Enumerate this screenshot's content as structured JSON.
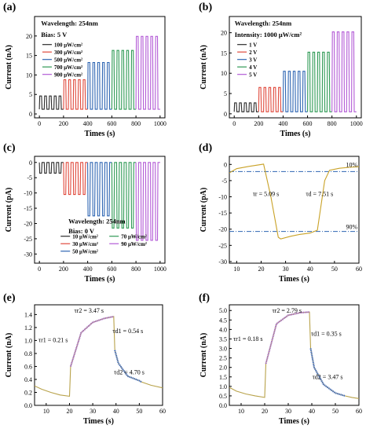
{
  "figure": {
    "panels": [
      {
        "id": "a",
        "label": "(a)"
      },
      {
        "id": "b",
        "label": "(b)"
      },
      {
        "id": "c",
        "label": "(c)"
      },
      {
        "id": "d",
        "label": "(d)"
      },
      {
        "id": "e",
        "label": "(e)"
      },
      {
        "id": "f",
        "label": "(f)"
      }
    ]
  },
  "chart_data": [
    {
      "id": "a",
      "type": "line",
      "xlabel": "Times (s)",
      "ylabel": "Current (nA)",
      "xlim": [
        -40,
        1040
      ],
      "ylim": [
        -1,
        25
      ],
      "xticks": [
        0,
        200,
        400,
        600,
        800,
        1000
      ],
      "yticks": [
        0,
        5,
        10,
        15,
        20
      ],
      "annotations": [
        "Wavelength: 254nm",
        "Bias: 5 V"
      ],
      "legend_position": "center-left",
      "series": [
        {
          "name": "100 μW/cm²",
          "color": "#2b2b2b",
          "x_start": 0,
          "x_end": 200,
          "on": 4.6,
          "off": 1.2
        },
        {
          "name": "300 μW/cm²",
          "color": "#e0493c",
          "x_start": 200,
          "x_end": 400,
          "on": 8.8,
          "off": 1.2
        },
        {
          "name": "500 μW/cm²",
          "color": "#2f66b3",
          "x_start": 400,
          "x_end": 600,
          "on": 13.2,
          "off": 1.2
        },
        {
          "name": "700 μW/cm²",
          "color": "#2f9a55",
          "x_start": 600,
          "x_end": 800,
          "on": 16.3,
          "off": 1.2
        },
        {
          "name": "900 μW/cm²",
          "color": "#b35bd6",
          "x_start": 800,
          "x_end": 1000,
          "on": 19.9,
          "off": 1.2
        }
      ]
    },
    {
      "id": "b",
      "type": "line",
      "xlabel": "Times (s)",
      "ylabel": "Current (nA)",
      "xlim": [
        -40,
        1040
      ],
      "ylim": [
        -1,
        24
      ],
      "xticks": [
        0,
        200,
        400,
        600,
        800,
        1000
      ],
      "yticks": [
        0,
        5,
        10,
        15,
        20
      ],
      "annotations": [
        "Wavelength: 254nm",
        "Intensity: 1000 μW/cm²"
      ],
      "legend_position": "center-left",
      "series": [
        {
          "name": "1 V",
          "color": "#2b2b2b",
          "x_start": 0,
          "x_end": 200,
          "on": 2.7,
          "off": 0.5
        },
        {
          "name": "2 V",
          "color": "#e0493c",
          "x_start": 200,
          "x_end": 400,
          "on": 6.5,
          "off": 0.5
        },
        {
          "name": "3 V",
          "color": "#2f66b3",
          "x_start": 400,
          "x_end": 600,
          "on": 10.5,
          "off": 0.5
        },
        {
          "name": "4 V",
          "color": "#2f9a55",
          "x_start": 600,
          "x_end": 800,
          "on": 15.2,
          "off": 0.5
        },
        {
          "name": "5 V",
          "color": "#b35bd6",
          "x_start": 800,
          "x_end": 1000,
          "on": 20.2,
          "off": 0.5
        }
      ]
    },
    {
      "id": "c",
      "type": "line",
      "xlabel": "Times (s)",
      "ylabel": "Current (pA)",
      "xlim": [
        -40,
        1040
      ],
      "ylim": [
        -33,
        2
      ],
      "xticks": [
        0,
        200,
        400,
        600,
        800,
        1000
      ],
      "yticks": [
        0,
        -5,
        -10,
        -15,
        -20,
        -25,
        -30
      ],
      "annotations": [
        "Wavelength: 254nm",
        "Bias: 0 V"
      ],
      "legend_position": "bottom-left",
      "series": [
        {
          "name": "10 μW/cm²",
          "color": "#2b2b2b",
          "x_start": 0,
          "x_end": 200,
          "on": -3.5,
          "off": 0
        },
        {
          "name": "30 μW/cm²",
          "color": "#e0493c",
          "x_start": 200,
          "x_end": 400,
          "on": -10.5,
          "off": 0
        },
        {
          "name": "50 μW/cm²",
          "color": "#2f66b3",
          "x_start": 400,
          "x_end": 600,
          "on": -17.5,
          "off": 0
        },
        {
          "name": "70 μW/cm²",
          "color": "#2f9a55",
          "x_start": 600,
          "x_end": 800,
          "on": -21.5,
          "off": 0
        },
        {
          "name": "90 μW/cm²",
          "color": "#b35bd6",
          "x_start": 800,
          "x_end": 1000,
          "on": -25.5,
          "off": 0
        }
      ]
    },
    {
      "id": "d",
      "type": "line",
      "xlabel": "Times (s)",
      "ylabel": "Current (pA)",
      "xlim": [
        7,
        60
      ],
      "ylim": [
        -30.5,
        2.5
      ],
      "xticks": [
        10,
        20,
        30,
        40,
        50,
        60
      ],
      "yticks": [
        0,
        -5,
        -10,
        -15,
        -20,
        -25,
        -30
      ],
      "annotations": [
        "τr = 5.09 s",
        "τd = 7.51 s",
        "10%",
        "90%"
      ],
      "reference_lines": [
        {
          "y": -2.2,
          "label": "10%"
        },
        {
          "y": -20.7,
          "label": "90%"
        }
      ],
      "series": [
        {
          "name": "",
          "color": "#c9a227",
          "x": [
            7,
            10,
            15,
            21,
            24,
            27,
            28,
            32,
            36,
            40,
            43,
            46,
            48,
            52,
            56,
            60
          ],
          "y": [
            -2.6,
            -1.3,
            -0.6,
            0.1,
            -10,
            -22.5,
            -23,
            -22.2,
            -21.6,
            -21.2,
            -20.3,
            -5,
            -1.8,
            -1.2,
            -0.9,
            -0.7
          ]
        }
      ]
    },
    {
      "id": "e",
      "type": "line",
      "xlabel": "Times (s)",
      "ylabel": "Current (nA)",
      "xlim": [
        5,
        60
      ],
      "ylim": [
        0,
        1.55
      ],
      "xticks": [
        10,
        20,
        30,
        40,
        50,
        60
      ],
      "yticks": [
        0.0,
        0.2,
        0.4,
        0.6,
        0.8,
        1.0,
        1.2,
        1.4
      ],
      "annotations": [
        "τr2 = 3.47 s",
        "τr1 = 0.21 s",
        "τd1 = 0.54 s",
        "τd2 = 4.70 s"
      ],
      "series": [
        {
          "name": "",
          "color": "#b8a24a",
          "x": [
            5,
            8,
            12,
            16,
            20,
            20.5,
            25,
            30,
            35,
            39,
            39.5,
            41,
            45,
            50,
            51,
            55,
            60
          ],
          "y": [
            0.3,
            0.25,
            0.2,
            0.16,
            0.14,
            0.6,
            1.12,
            1.28,
            1.34,
            1.37,
            0.85,
            0.65,
            0.45,
            0.38,
            0.36,
            0.31,
            0.27
          ]
        }
      ],
      "fits": [
        {
          "name": "rise",
          "color": "#a267d8",
          "x": [
            20.5,
            25,
            30,
            35,
            39
          ],
          "y": [
            0.6,
            1.12,
            1.28,
            1.34,
            1.37
          ]
        },
        {
          "name": "decay",
          "color": "#2f66d6",
          "x": [
            39.5,
            41,
            45,
            50,
            51
          ],
          "y": [
            0.85,
            0.65,
            0.45,
            0.38,
            0.36
          ]
        }
      ]
    },
    {
      "id": "f",
      "type": "line",
      "xlabel": "Times (s)",
      "ylabel": "Current (nA)",
      "xlim": [
        5,
        60
      ],
      "ylim": [
        0,
        5.3
      ],
      "xticks": [
        10,
        20,
        30,
        40,
        50,
        60
      ],
      "yticks": [
        0.0,
        0.5,
        1.0,
        1.5,
        2.0,
        2.5,
        3.0,
        3.5,
        4.0,
        4.5,
        5.0
      ],
      "annotations": [
        "τr2 = 2.79 s",
        "τr1 = 0.18 s",
        "τd1 = 0.35 s",
        "τd2 = 3.47 s"
      ],
      "series": [
        {
          "name": "",
          "color": "#b8a24a",
          "x": [
            5,
            8,
            12,
            16,
            20,
            20.5,
            25,
            30,
            35,
            39,
            39.5,
            41,
            45,
            50,
            54,
            57,
            60
          ],
          "y": [
            0.95,
            0.75,
            0.6,
            0.5,
            0.42,
            2.2,
            4.3,
            4.75,
            4.88,
            4.92,
            3.0,
            2.0,
            1.1,
            0.65,
            0.5,
            0.42,
            0.36
          ]
        }
      ],
      "fits": [
        {
          "name": "rise",
          "color": "#a267d8",
          "x": [
            20.5,
            25,
            30,
            35,
            39
          ],
          "y": [
            2.2,
            4.3,
            4.75,
            4.88,
            4.92
          ]
        },
        {
          "name": "decay",
          "color": "#2f66d6",
          "x": [
            39.5,
            41,
            45,
            50,
            54
          ],
          "y": [
            3.0,
            2.0,
            1.1,
            0.65,
            0.5
          ]
        }
      ]
    }
  ]
}
